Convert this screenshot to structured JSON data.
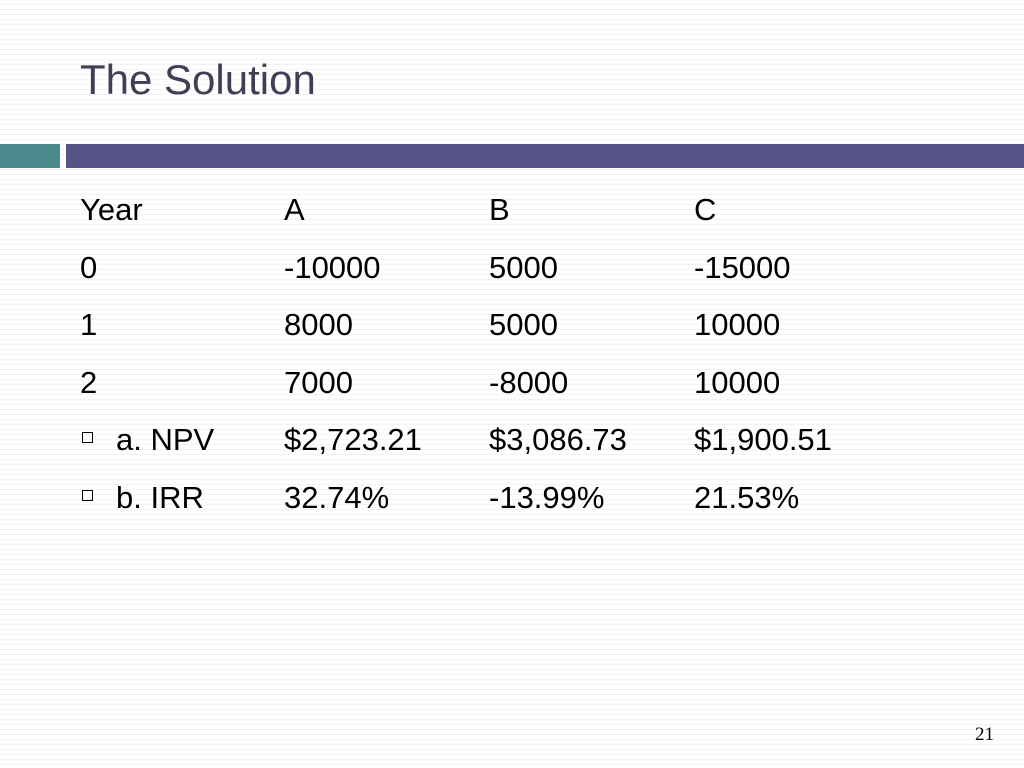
{
  "slide": {
    "title": "The Solution",
    "page_number": "21"
  },
  "table": {
    "headers": [
      "Year",
      "A",
      "B",
      "C"
    ],
    "rows": [
      {
        "label": "0",
        "values": [
          "-10000",
          "5000",
          "-15000"
        ]
      },
      {
        "label": "1",
        "values": [
          "8000",
          "5000",
          "10000"
        ]
      },
      {
        "label": "2",
        "values": [
          "7000",
          "-8000",
          "10000"
        ]
      }
    ],
    "bullet_rows": [
      {
        "label": "a. NPV",
        "values": [
          "$2,723.21",
          "$3,086.73",
          "$1,900.51"
        ]
      },
      {
        "label": "b. IRR",
        "values": [
          "32.74%",
          "-13.99%",
          "21.53%"
        ]
      }
    ]
  },
  "colors": {
    "title": "#3f3f56",
    "accent_teal": "#4a8a8c",
    "accent_purple": "#575488"
  }
}
